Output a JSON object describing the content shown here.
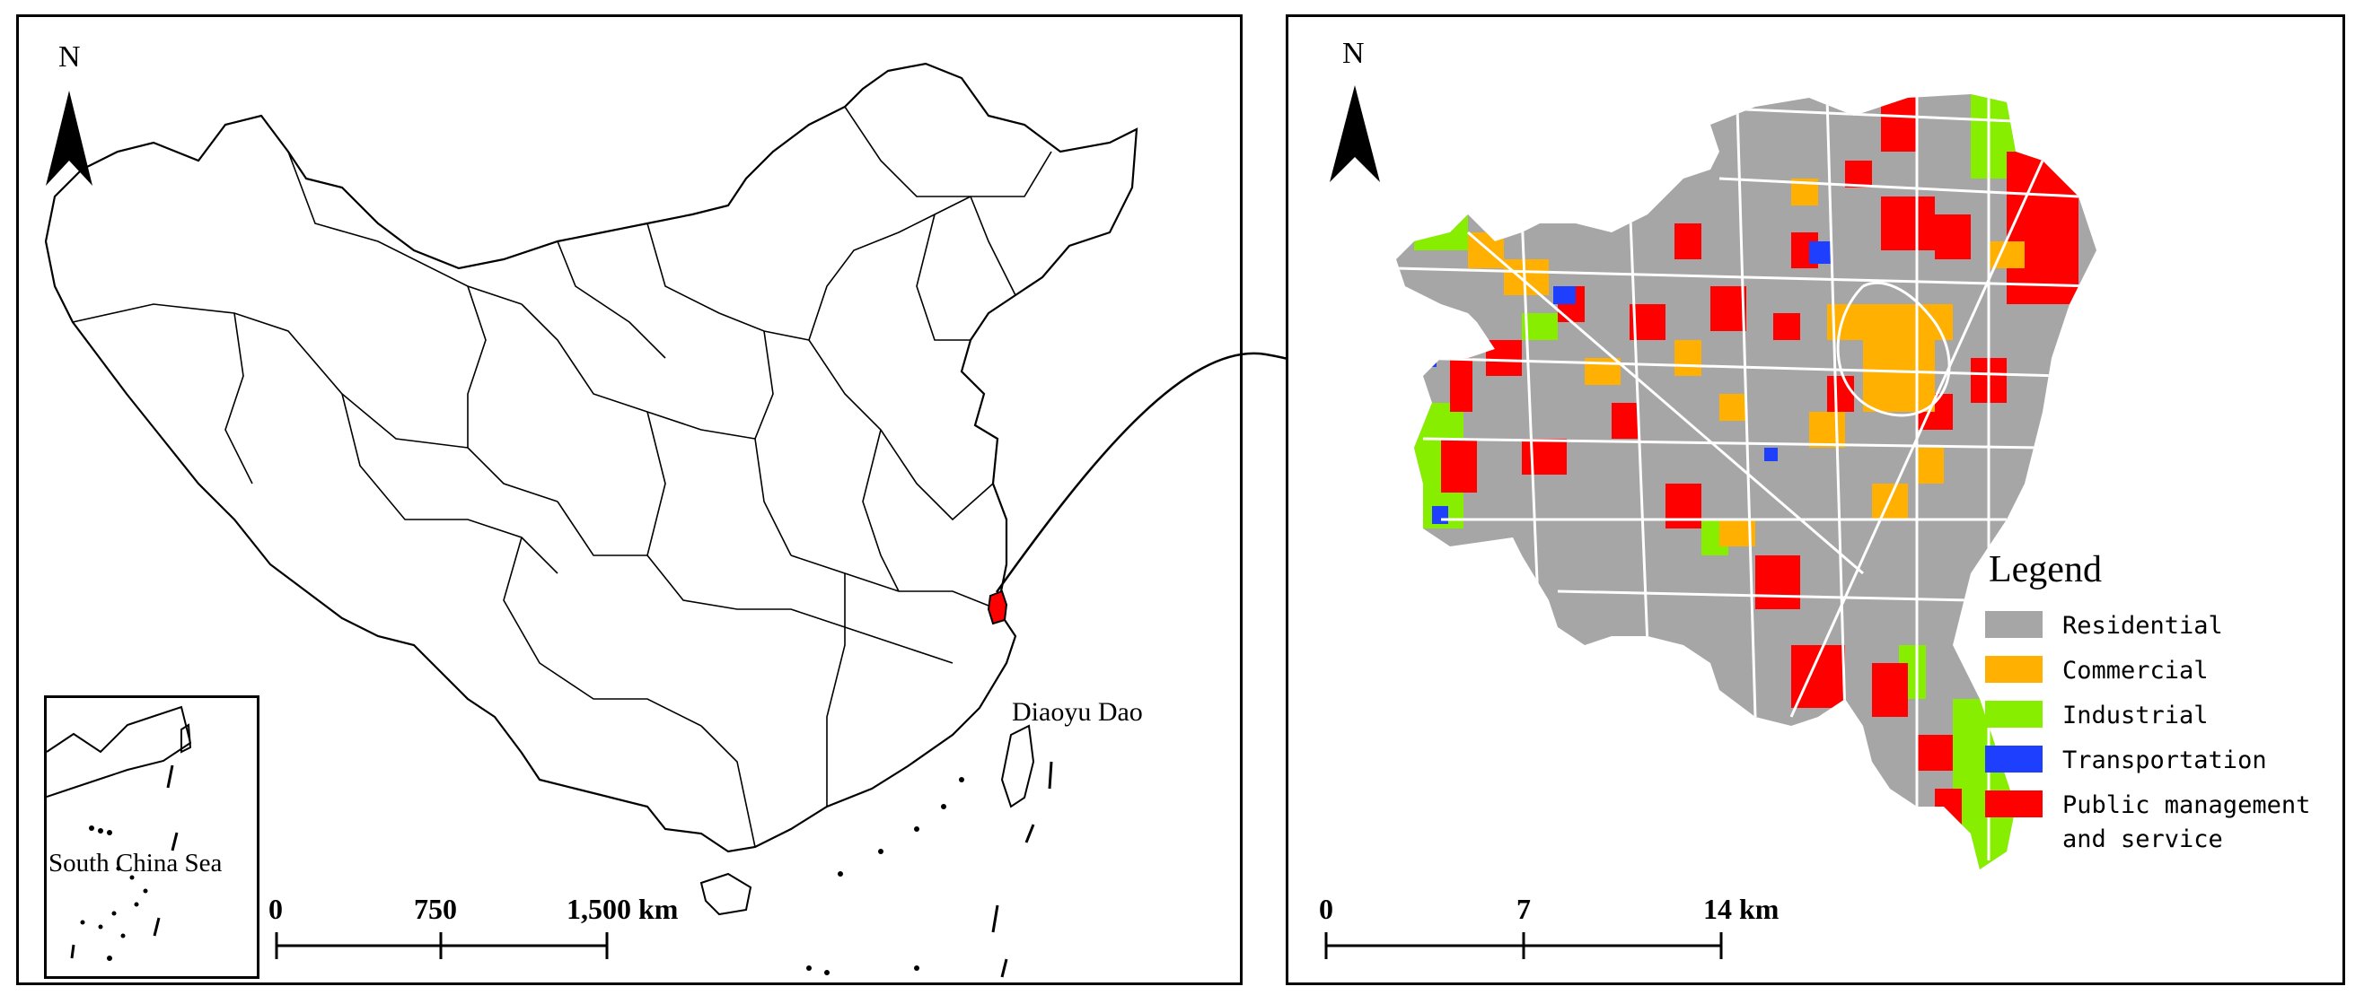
{
  "left_map": {
    "north": "N",
    "scale": {
      "ticks": [
        "0",
        "750",
        "1,500 km"
      ]
    },
    "labels": {
      "islands": "Diaoyu Dao",
      "inset_sea": "South China Sea"
    }
  },
  "right_map": {
    "north": "N",
    "scale": {
      "ticks": [
        "0",
        "7",
        "14 km"
      ]
    },
    "legend": {
      "title": "Legend",
      "items": [
        {
          "label": "Residential",
          "color": "#a6a6a6"
        },
        {
          "label": "Commercial",
          "color": "#ffb000"
        },
        {
          "label": "Industrial",
          "color": "#88ee00"
        },
        {
          "label": "Transportation",
          "color": "#1f3fff"
        },
        {
          "label": "Public management\nand service",
          "color": "#ff0000"
        }
      ]
    }
  },
  "colors": {
    "study_area": "#ff0000",
    "outline": "#000000"
  }
}
